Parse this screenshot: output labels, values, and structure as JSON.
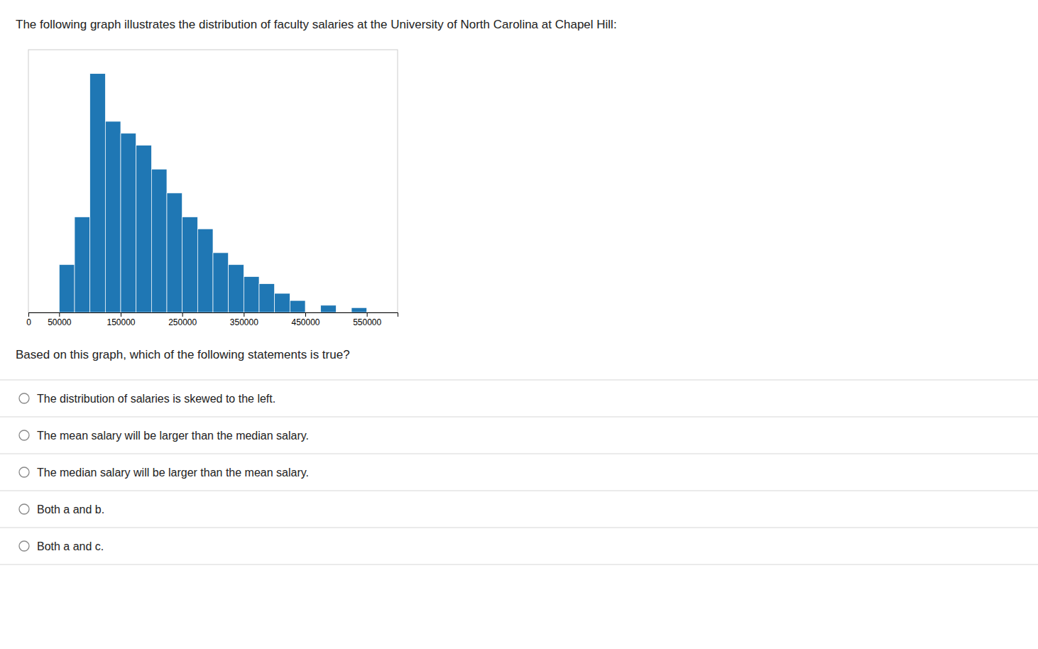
{
  "chart_data": {
    "type": "histogram",
    "title": "The following graph illustrates the distribution of faculty salaries at the University of North Carolina at Chapel Hill:",
    "x": [
      50000,
      75000,
      100000,
      125000,
      150000,
      175000,
      200000,
      225000,
      250000,
      275000,
      300000,
      325000,
      350000,
      375000,
      400000,
      425000,
      475000,
      525000
    ],
    "bin_width": 25000,
    "values": [
      2,
      4,
      10,
      8,
      7.5,
      7,
      6,
      5,
      4,
      3.5,
      2.5,
      2,
      1.5,
      1.2,
      0.8,
      0.5,
      0.3,
      0.2
    ],
    "xlim": [
      0,
      600000
    ],
    "xticks": [
      0,
      50000,
      150000,
      250000,
      350000,
      450000,
      550000
    ],
    "ylim": [
      0,
      11
    ],
    "tick_labels": "x",
    "grid": false
  },
  "question": "Based on this graph, which of the following statements is true?",
  "options": [
    "The distribution of salaries is skewed to the left.",
    "The mean salary will be larger than the median salary.",
    "The median salary will be larger than the mean salary.",
    "Both a and b.",
    "Both a and c."
  ]
}
